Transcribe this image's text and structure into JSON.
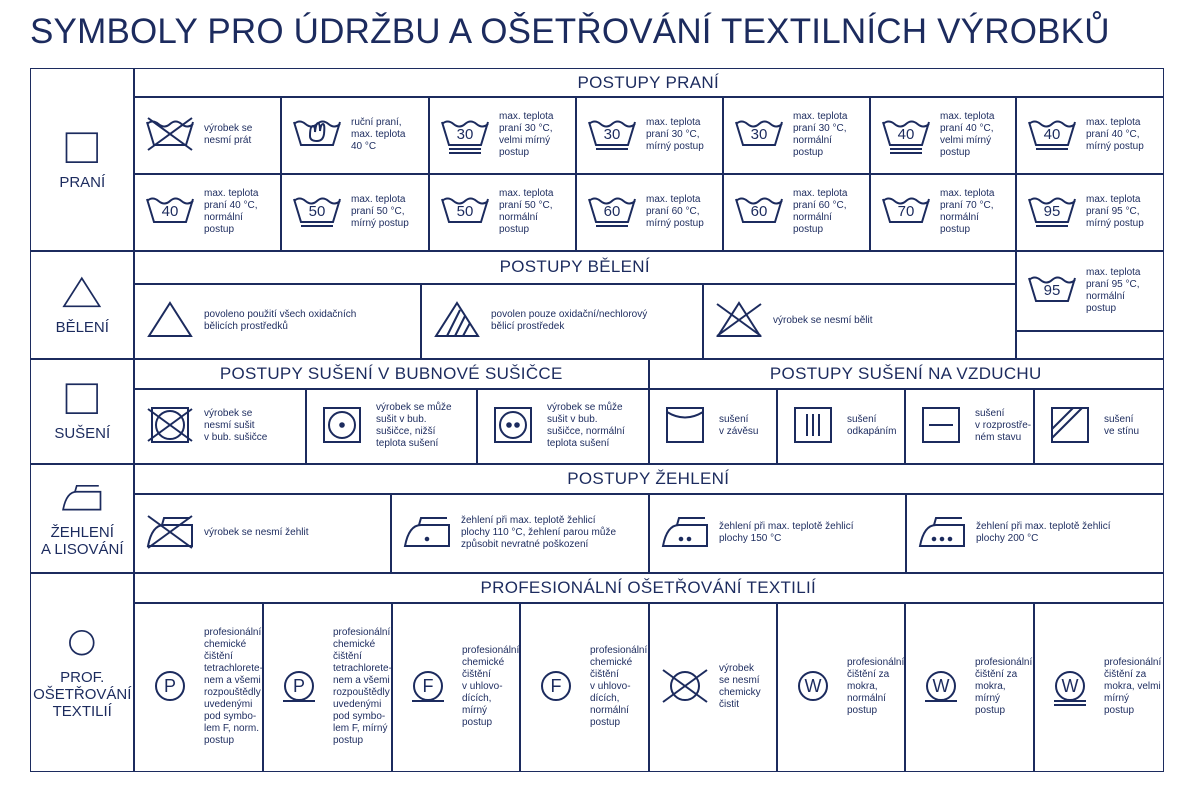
{
  "title": "SYMBOLY PRO ÚDRŽBU A OŠETŘOVÁNÍ TEXTILNÍCH VÝROBKŮ",
  "washing": {
    "label": "PRANÍ",
    "heading": "POSTUPY PRANÍ",
    "cells": [
      {
        "text": "výrobek se\nnesmí prát"
      },
      {
        "text": "ruční praní,\nmax. teplota\n40 °C"
      },
      {
        "symbol": "30",
        "text": "max. teplota\npraní 30 °C,\nvelmi mírný\npostup"
      },
      {
        "symbol": "30",
        "text": "max. teplota\npraní 30 °C,\nmírný postup"
      },
      {
        "symbol": "30",
        "text": "max. teplota\npraní 30 °C,\nnormální\npostup"
      },
      {
        "symbol": "40",
        "text": "max. teplota\npraní 40 °C,\nvelmi mírný\npostup"
      },
      {
        "symbol": "40",
        "text": "max. teplota\npraní 40 °C,\nmírný postup"
      },
      {
        "symbol": "40",
        "text": "max. teplota\npraní 40 °C,\nnormální\npostup"
      },
      {
        "symbol": "50",
        "text": "max. teplota\npraní 50 °C,\nmírný postup"
      },
      {
        "symbol": "50",
        "text": "max. teplota\npraní 50 °C,\nnormální\npostup"
      },
      {
        "symbol": "60",
        "text": "max. teplota\npraní 60 °C,\nmírný postup"
      },
      {
        "symbol": "60",
        "text": "max. teplota\npraní 60 °C,\nnormální\npostup"
      },
      {
        "symbol": "70",
        "text": "max. teplota\npraní 70 °C,\nnormální\npostup"
      },
      {
        "symbol": "95",
        "text": "max. teplota\npraní 95 °C,\nmírný postup"
      },
      {
        "symbol": "95",
        "text": "max. teplota\npraní 95 °C,\nnormální\npostup"
      }
    ]
  },
  "bleaching": {
    "label": "BĚLENÍ",
    "heading": "POSTUPY BĚLENÍ",
    "cells": [
      {
        "text": "povoleno použití všech oxidačních\nbělicích prostředků"
      },
      {
        "text": "povolen pouze oxidační/nechlorový\nbělicí prostředek"
      },
      {
        "text": "výrobek se nesmí bělit"
      }
    ]
  },
  "drying": {
    "label": "SUŠENÍ",
    "tumble_heading": "POSTUPY SUŠENÍ V BUBNOVÉ SUŠIČCE",
    "air_heading": "POSTUPY SUŠENÍ NA VZDUCHU",
    "cells": [
      {
        "text": "výrobek se\nnesmí sušit\nv bub. sušičce"
      },
      {
        "text": "výrobek se může\nsušit v bub.\nsušičce, nižší\nteplota sušení"
      },
      {
        "text": "výrobek se může\nsušit v bub.\nsušičce, normální\nteplota sušení"
      },
      {
        "text": "sušení\nv závěsu"
      },
      {
        "text": "sušení\nodkapáním"
      },
      {
        "text": "sušení\nv rozprostře-\nném stavu"
      },
      {
        "text": "sušení\nve stínu"
      }
    ]
  },
  "ironing": {
    "label": "ŽEHLENÍ\nA LISOVÁNÍ",
    "heading": "POSTUPY ŽEHLENÍ",
    "cells": [
      {
        "text": "výrobek se nesmí žehlit"
      },
      {
        "text": "žehlení při max. teplotě žehlicí\nplochy 110 °C, žehlení parou může\nzpůsobit nevratné poškození"
      },
      {
        "text": "žehlení při max. teplotě žehlicí\nplochy 150 °C"
      },
      {
        "text": "žehlení při max. teplotě žehlicí\nplochy 200 °C"
      }
    ]
  },
  "professional": {
    "label": "PROF.\nOŠETŘOVÁNÍ\nTEXTILIÍ",
    "heading": "PROFESIONÁLNÍ OŠETŘOVÁNÍ TEXTILIÍ",
    "cells": [
      {
        "symbol": "P",
        "text": "profesionální\nchemické\nčištění\ntetrachlorete-\nnem a všemi\nrozpouštědly\nuvedenými\npod symbo-\nlem F, norm.\npostup"
      },
      {
        "symbol": "P",
        "text": "profesionální\nchemické\nčištění\ntetrachlorete-\nnem a všemi\nrozpouštědly\nuvedenými\npod symbo-\nlem F, mírný\npostup"
      },
      {
        "symbol": "F",
        "text": "profesionální\nchemické\nčištění\nv uhlovo-\ndících,\nmírný\npostup"
      },
      {
        "symbol": "F",
        "text": "profesionální\nchemické\nčištění\nv uhlovo-\ndících,\nnormální\npostup"
      },
      {
        "text": "výrobek\nse nesmí\nchemicky\nčistit"
      },
      {
        "symbol": "W",
        "text": "profesionální\nčištění za\nmokra,\nnormální\npostup"
      },
      {
        "symbol": "W",
        "text": "profesionální\nčištění za\nmokra,\nmírný\npostup"
      },
      {
        "symbol": "W",
        "text": "profesionální\nčištění za\nmokra, velmi\nmírný\npostup"
      }
    ]
  }
}
